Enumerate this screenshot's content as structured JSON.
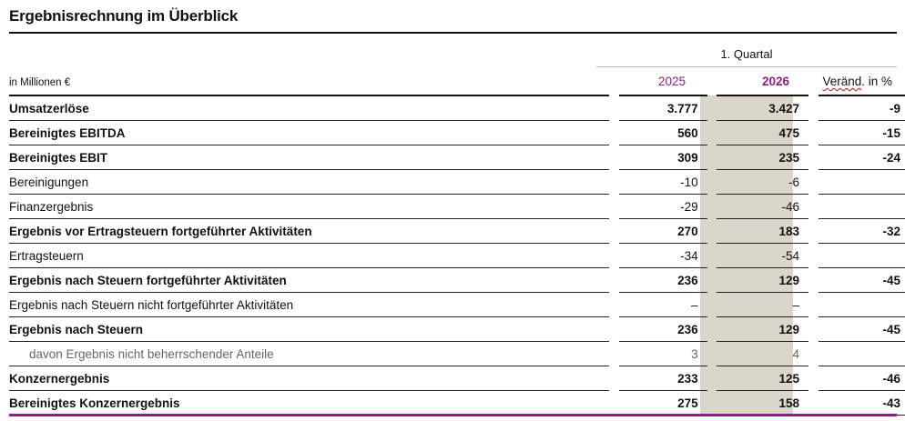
{
  "title": "Ergebnisrechnung im Überblick",
  "unit_label": "in Millionen €",
  "period_label": "1. Quartal",
  "columns": {
    "y2025": "2025",
    "y2026": "2026",
    "change_prefix": "Veränd",
    "change_suffix": ". in %"
  },
  "colors": {
    "accent": "#8b1f7d",
    "highlight_column": "#dad6cc"
  },
  "rows": [
    {
      "label": "Umsatzerlöse",
      "v2025": "3.777",
      "v2026": "3.427",
      "change": "-9",
      "bold": true
    },
    {
      "label": "Bereinigtes EBITDA",
      "v2025": "560",
      "v2026": "475",
      "change": "-15",
      "bold": true
    },
    {
      "label": "Bereinigtes EBIT",
      "v2025": "309",
      "v2026": "235",
      "change": "-24",
      "bold": true
    },
    {
      "label": "Bereinigungen",
      "v2025": "-10",
      "v2026": "-6",
      "change": "",
      "bold": false
    },
    {
      "label": "Finanzergebnis",
      "v2025": "-29",
      "v2026": "-46",
      "change": "",
      "bold": false
    },
    {
      "label": "Ergebnis vor Ertragsteuern fortgeführter Aktivitäten",
      "v2025": "270",
      "v2026": "183",
      "change": "-32",
      "bold": true
    },
    {
      "label": "Ertragsteuern",
      "v2025": "-34",
      "v2026": "-54",
      "change": "",
      "bold": false
    },
    {
      "label": "Ergebnis nach Steuern fortgeführter Aktivitäten",
      "v2025": "236",
      "v2026": "129",
      "change": "-45",
      "bold": true
    },
    {
      "label": "Ergebnis nach Steuern nicht fortgeführter Aktivitäten",
      "v2025": "–",
      "v2026": "–",
      "change": "",
      "bold": false
    },
    {
      "label": "Ergebnis nach Steuern",
      "v2025": "236",
      "v2026": "129",
      "change": "-45",
      "bold": true
    },
    {
      "label": "davon Ergebnis nicht beherrschender Anteile",
      "v2025": "3",
      "v2026": "4",
      "change": "",
      "bold": false,
      "sub": true
    },
    {
      "label": "Konzernergebnis",
      "v2025": "233",
      "v2026": "125",
      "change": "-46",
      "bold": true
    },
    {
      "label": "Bereinigtes Konzernergebnis",
      "v2025": "275",
      "v2026": "158",
      "change": "-43",
      "bold": true
    }
  ]
}
